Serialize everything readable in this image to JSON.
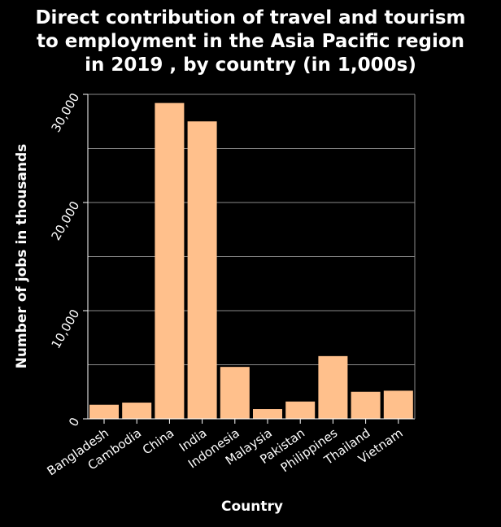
{
  "chart_data": {
    "type": "bar",
    "title_lines": [
      "Direct contribution of travel and tourism",
      "to employment in the Asia Pacific region",
      "in 2019 , by country (in 1,000s)"
    ],
    "xlabel": "Country",
    "ylabel": "Number of jobs in thousands",
    "categories": [
      "Bangladesh",
      "Cambodia",
      "China",
      "India",
      "Indonesia",
      "Malaysia",
      "Pakistan",
      "Philippines",
      "Thailand",
      "Vietnam"
    ],
    "values": [
      1300,
      1500,
      29200,
      27500,
      4800,
      900,
      1600,
      5800,
      2500,
      2600
    ],
    "ylim": [
      0,
      30000
    ],
    "y_ticks": [
      0,
      10000,
      20000,
      30000
    ],
    "y_tick_labels": [
      "0",
      "10,000",
      "20,000",
      "30,000"
    ],
    "y_gridlines": [
      5000,
      10000,
      15000,
      20000,
      25000,
      30000
    ],
    "grid": true,
    "colors": {
      "background": "#000000",
      "bar": "#ffc08c",
      "text": "#ffffff",
      "grid": "#8a8a8a",
      "axis": "#ffffff"
    }
  }
}
